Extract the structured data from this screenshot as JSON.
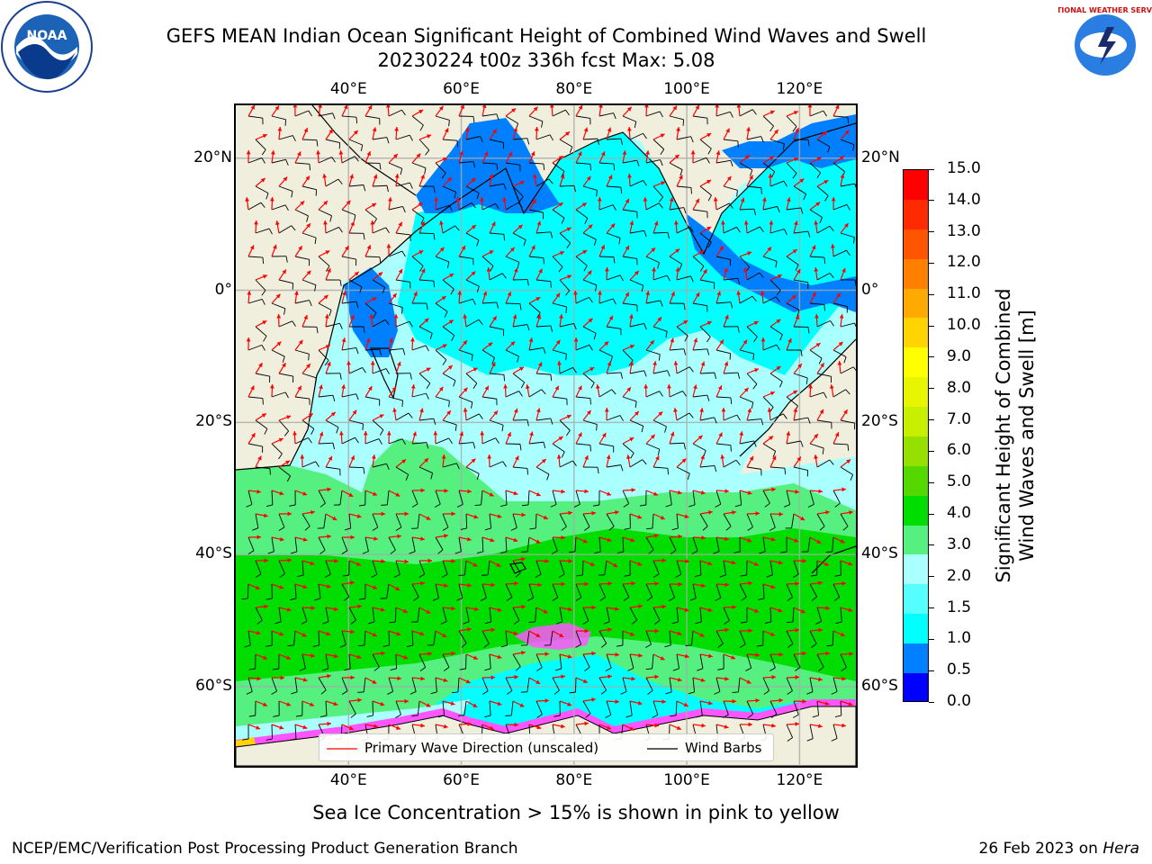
{
  "title": {
    "line1": "GEFS MEAN Indian Ocean Significant Height of Combined Wind Waves and Swell",
    "line2": "20230224 t00z 336h fcst   Max: 5.08"
  },
  "logos": {
    "left": "NOAA",
    "right": "NATIONAL WEATHER SERVICE"
  },
  "map": {
    "lon_ticks": [
      "40°E",
      "60°E",
      "80°E",
      "100°E",
      "120°E"
    ],
    "lat_ticks": [
      "20°N",
      "0°",
      "20°S",
      "40°S",
      "60°S"
    ],
    "lon_range": [
      20,
      130
    ],
    "lat_range": [
      -72,
      28
    ],
    "grid": true,
    "legend": {
      "wave_label": "Primary Wave Direction (unscaled)",
      "barb_label": "Wind Barbs",
      "wave_color": "#ff0000",
      "barb_color": "#000000"
    }
  },
  "colorbar": {
    "label_line1": "Significant Height of Combined",
    "label_line2": "Wind Waves and Swell [m]",
    "ticks": [
      "15.0",
      "14.0",
      "13.0",
      "12.0",
      "11.0",
      "10.0",
      "9.0",
      "8.0",
      "7.0",
      "6.0",
      "5.0",
      "4.0",
      "3.0",
      "2.0",
      "1.5",
      "1.0",
      "0.5",
      "0.0"
    ],
    "colors_top_to_bottom": [
      "#ff0000",
      "#ff2a00",
      "#ff5500",
      "#ff8000",
      "#ffaa00",
      "#ffd400",
      "#ffff00",
      "#e8f500",
      "#c8ee00",
      "#96e000",
      "#55d800",
      "#00dd00",
      "#55f080",
      "#aaffff",
      "#55ffff",
      "#00ffff",
      "#0080ff",
      "#0000ff"
    ]
  },
  "annotation": "Sea Ice Concentration > 15% is shown in pink to yellow",
  "footer": {
    "left": "NCEP/EMC/Verification Post Processing Product Generation Branch",
    "right_prefix": "26 Feb 2023 on ",
    "right_host": "Hera"
  }
}
